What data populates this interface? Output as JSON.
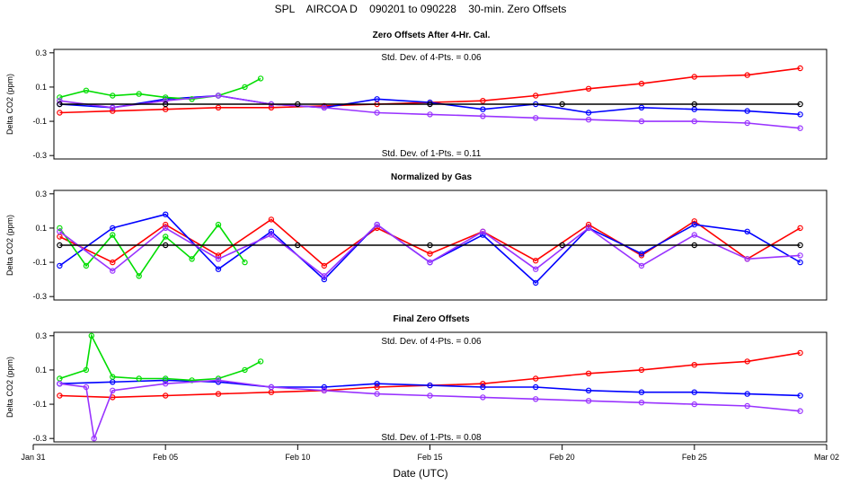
{
  "chart_data": {
    "type": "line",
    "title": "SPL    AIRCOA D    090201 to 090228    30-min. Zero Offsets",
    "xlabel": "Date (UTC)",
    "ylabel": "Delta CO2 (ppm)",
    "x_ticks": [
      "Jan 31",
      "Feb 05",
      "Feb 10",
      "Feb 15",
      "Feb 20",
      "Feb 25",
      "Mar 02"
    ],
    "x_tick_days": [
      0,
      5,
      10,
      15,
      20,
      25,
      30
    ],
    "xlim": [
      0,
      30
    ],
    "colors": {
      "gas1": "#ff0000",
      "gas2": "#0000ff",
      "gas3": "#00dd00",
      "gas4": "#9933ff",
      "gas5": "#000000"
    },
    "panels": [
      {
        "title": "Zero Offsets After 4-Hr. Cal.",
        "ylim": [
          -0.32,
          0.32
        ],
        "y_ticks": [
          -0.3,
          -0.1,
          0.1,
          0.3
        ],
        "y_tick_labels": [
          "-0.3",
          "-0.1",
          "0.1",
          "0.3"
        ],
        "annotation_top": "Std. Dev. of 4-Pts. = 0.06",
        "annotation_bottom": "Std. Dev. of 1-Pts. = 0.11",
        "series": [
          {
            "name": "red",
            "color": "#ff0000",
            "x": [
              1.0,
              3.0,
              5.0,
              7.0,
              9.0,
              11.0,
              13.0,
              15.0,
              17.0,
              19.0,
              21.0,
              23.0,
              25.0,
              27.0,
              29.0
            ],
            "y": [
              -0.05,
              -0.04,
              -0.03,
              -0.02,
              -0.02,
              -0.01,
              0.0,
              0.01,
              0.02,
              0.05,
              0.09,
              0.12,
              0.16,
              0.17,
              0.21
            ]
          },
          {
            "name": "blue",
            "color": "#0000ff",
            "x": [
              1.0,
              3.0,
              5.0,
              7.0,
              9.0,
              11.0,
              13.0,
              15.0,
              17.0,
              19.0,
              21.0,
              23.0,
              25.0,
              27.0,
              29.0
            ],
            "y": [
              0.0,
              -0.02,
              0.03,
              0.05,
              0.0,
              -0.02,
              0.03,
              0.01,
              -0.03,
              0.0,
              -0.05,
              -0.02,
              -0.03,
              -0.04,
              -0.06
            ]
          },
          {
            "name": "green",
            "color": "#00dd00",
            "x": [
              1.0,
              2.0,
              3.0,
              4.0,
              5.0,
              6.0,
              7.0,
              8.0,
              8.6
            ],
            "y": [
              0.04,
              0.08,
              0.05,
              0.06,
              0.04,
              0.03,
              0.05,
              0.1,
              0.15
            ]
          },
          {
            "name": "purple",
            "color": "#9933ff",
            "x": [
              1.0,
              3.0,
              5.0,
              7.0,
              9.0,
              11.0,
              13.0,
              15.0,
              17.0,
              19.0,
              21.0,
              23.0,
              25.0,
              27.0,
              29.0
            ],
            "y": [
              0.02,
              -0.02,
              0.02,
              0.05,
              0.0,
              -0.02,
              -0.05,
              -0.06,
              -0.07,
              -0.08,
              -0.09,
              -0.1,
              -0.1,
              -0.11,
              -0.14
            ]
          },
          {
            "name": "black",
            "color": "#000000",
            "x": [
              1.0,
              5.0,
              10.0,
              15.0,
              20.0,
              25.0,
              29.0
            ],
            "y": [
              0.0,
              0.0,
              0.0,
              0.0,
              0.0,
              0.0,
              0.0
            ]
          }
        ]
      },
      {
        "title": "Normalized by Gas",
        "ylim": [
          -0.32,
          0.32
        ],
        "y_ticks": [
          -0.3,
          -0.1,
          0.1,
          0.3
        ],
        "y_tick_labels": [
          "-0.3",
          "-0.1",
          "0.1",
          "0.3"
        ],
        "annotation_top": "",
        "annotation_bottom": "",
        "series": [
          {
            "name": "red",
            "color": "#ff0000",
            "x": [
              1.0,
              3.0,
              5.0,
              7.0,
              9.0,
              11.0,
              13.0,
              15.0,
              17.0,
              19.0,
              21.0,
              23.0,
              25.0,
              27.0,
              29.0
            ],
            "y": [
              0.05,
              -0.1,
              0.12,
              -0.06,
              0.15,
              -0.12,
              0.1,
              -0.05,
              0.08,
              -0.09,
              0.12,
              -0.06,
              0.14,
              -0.08,
              0.1
            ]
          },
          {
            "name": "blue",
            "color": "#0000ff",
            "x": [
              1.0,
              3.0,
              5.0,
              7.0,
              9.0,
              11.0,
              13.0,
              15.0,
              17.0,
              19.0,
              21.0,
              23.0,
              25.0,
              27.0,
              29.0
            ],
            "y": [
              -0.12,
              0.1,
              0.18,
              -0.14,
              0.08,
              -0.2,
              0.12,
              -0.1,
              0.06,
              -0.22,
              0.1,
              -0.05,
              0.12,
              0.08,
              -0.1
            ]
          },
          {
            "name": "green",
            "color": "#00dd00",
            "x": [
              1.0,
              2.0,
              3.0,
              4.0,
              5.0,
              6.0,
              7.0,
              8.0
            ],
            "y": [
              0.1,
              -0.12,
              0.06,
              -0.18,
              0.05,
              -0.08,
              0.12,
              -0.1
            ]
          },
          {
            "name": "purple",
            "color": "#9933ff",
            "x": [
              1.0,
              3.0,
              5.0,
              7.0,
              9.0,
              11.0,
              13.0,
              15.0,
              17.0,
              19.0,
              21.0,
              23.0,
              25.0,
              27.0,
              29.0
            ],
            "y": [
              0.08,
              -0.15,
              0.1,
              -0.08,
              0.06,
              -0.18,
              0.12,
              -0.1,
              0.08,
              -0.14,
              0.1,
              -0.12,
              0.06,
              -0.08,
              -0.06
            ]
          },
          {
            "name": "black",
            "color": "#000000",
            "x": [
              1.0,
              5.0,
              10.0,
              15.0,
              20.0,
              25.0,
              29.0
            ],
            "y": [
              0.0,
              0.0,
              0.0,
              0.0,
              0.0,
              0.0,
              0.0
            ]
          }
        ]
      },
      {
        "title": "Final Zero Offsets",
        "ylim": [
          -0.32,
          0.32
        ],
        "y_ticks": [
          -0.3,
          -0.1,
          0.1,
          0.3
        ],
        "y_tick_labels": [
          "-0.3",
          "-0.1",
          "0.1",
          "0.3"
        ],
        "annotation_top": "Std. Dev. of 4-Pts. = 0.06",
        "annotation_bottom": "Std. Dev. of 1-Pts. = 0.08",
        "series": [
          {
            "name": "red",
            "color": "#ff0000",
            "x": [
              1.0,
              3.0,
              5.0,
              7.0,
              9.0,
              11.0,
              13.0,
              15.0,
              17.0,
              19.0,
              21.0,
              23.0,
              25.0,
              27.0,
              29.0
            ],
            "y": [
              -0.05,
              -0.06,
              -0.05,
              -0.04,
              -0.03,
              -0.02,
              0.0,
              0.01,
              0.02,
              0.05,
              0.08,
              0.1,
              0.13,
              0.15,
              0.2
            ]
          },
          {
            "name": "blue",
            "color": "#0000ff",
            "x": [
              1.0,
              3.0,
              5.0,
              7.0,
              9.0,
              11.0,
              13.0,
              15.0,
              17.0,
              19.0,
              21.0,
              23.0,
              25.0,
              27.0,
              29.0
            ],
            "y": [
              0.02,
              0.03,
              0.04,
              0.03,
              0.0,
              0.0,
              0.02,
              0.01,
              0.0,
              0.0,
              -0.02,
              -0.03,
              -0.03,
              -0.04,
              -0.05
            ]
          },
          {
            "name": "green",
            "color": "#00dd00",
            "x": [
              1.0,
              2.0,
              2.2,
              3.0,
              4.0,
              5.0,
              6.0,
              7.0,
              8.0,
              8.6
            ],
            "y": [
              0.05,
              0.1,
              0.3,
              0.06,
              0.05,
              0.05,
              0.04,
              0.05,
              0.1,
              0.15
            ]
          },
          {
            "name": "purple",
            "color": "#9933ff",
            "x": [
              1.0,
              2.0,
              2.3,
              3.0,
              5.0,
              7.0,
              9.0,
              11.0,
              13.0,
              15.0,
              17.0,
              19.0,
              21.0,
              23.0,
              25.0,
              27.0,
              29.0
            ],
            "y": [
              0.02,
              0.0,
              -0.3,
              -0.02,
              0.02,
              0.04,
              0.0,
              -0.02,
              -0.04,
              -0.05,
              -0.06,
              -0.07,
              -0.08,
              -0.09,
              -0.1,
              -0.11,
              -0.14
            ]
          }
        ]
      }
    ]
  }
}
